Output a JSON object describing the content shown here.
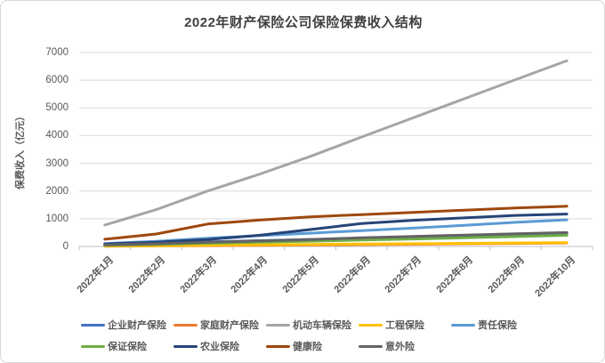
{
  "chart_data": {
    "type": "line",
    "title": "2022年财产保险公司保险保费收入结构",
    "xlabel": "",
    "ylabel": "保费收入（亿元）",
    "ylim": [
      0,
      7000
    ],
    "ytick_step": 1000,
    "grid": true,
    "legend_position": "bottom",
    "categories": [
      "2022年1月",
      "2022年2月",
      "2022年3月",
      "2022年4月",
      "2022年5月",
      "2022年6月",
      "2022年7月",
      "2022年8月",
      "2022年9月",
      "2022年10月"
    ],
    "series": [
      {
        "name": "企业财产保险",
        "color": "#4472C4",
        "values": [
          75,
          115,
          165,
          210,
          255,
          300,
          340,
          380,
          420,
          460
        ]
      },
      {
        "name": "家庭财产保险",
        "color": "#ED7D31",
        "values": [
          8,
          18,
          30,
          42,
          55,
          68,
          80,
          95,
          110,
          125
        ]
      },
      {
        "name": "机动车辆保险",
        "color": "#A5A5A5",
        "values": [
          775,
          1330,
          2000,
          2600,
          3250,
          3950,
          4640,
          5330,
          6020,
          6700
        ]
      },
      {
        "name": "工程保险",
        "color": "#FFC000",
        "values": [
          12,
          25,
          45,
          60,
          75,
          90,
          100,
          112,
          126,
          140
        ]
      },
      {
        "name": "责任保险",
        "color": "#5B9BD5",
        "values": [
          105,
          185,
          300,
          390,
          480,
          570,
          660,
          760,
          870,
          960
        ]
      },
      {
        "name": "保证保险",
        "color": "#70AD47",
        "values": [
          40,
          75,
          115,
          155,
          190,
          230,
          270,
          310,
          355,
          400
        ]
      },
      {
        "name": "农业保险",
        "color": "#264478",
        "values": [
          90,
          155,
          250,
          400,
          610,
          830,
          945,
          1030,
          1120,
          1170
        ]
      },
      {
        "name": "健康险",
        "color": "#9E480E",
        "values": [
          260,
          450,
          810,
          950,
          1070,
          1150,
          1230,
          1310,
          1390,
          1450
        ]
      },
      {
        "name": "意外险",
        "color": "#636363",
        "values": [
          55,
          95,
          150,
          200,
          250,
          310,
          360,
          410,
          460,
          500
        ]
      }
    ],
    "axis_colors": {
      "gridline": "#d9d9d9",
      "axis_line": "#bfbfbf",
      "tick_text": "#595959"
    }
  }
}
